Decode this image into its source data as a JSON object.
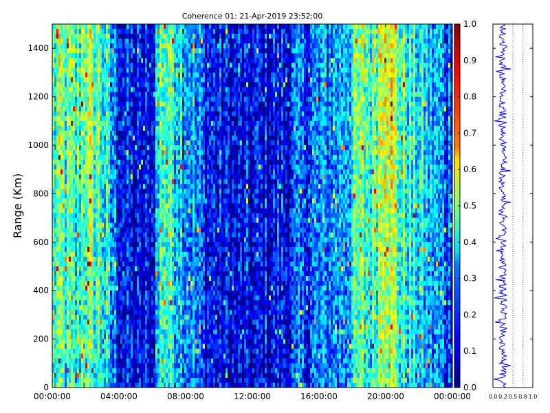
{
  "chart_data": [
    {
      "type": "heatmap",
      "title": "Coherence 01: 21-Apr-2019 23:52:00",
      "xlabel": "",
      "ylabel": "Range (Km)",
      "x_ticks": [
        "00:00:00",
        "04:00:00",
        "08:00:00",
        "12:00:00",
        "16:00:00",
        "20:00:00",
        "00:00:00"
      ],
      "y_ticks": [
        0,
        200,
        400,
        600,
        800,
        1000,
        1200,
        1400
      ],
      "x_range_hours": [
        0,
        24
      ],
      "ylim": [
        0,
        1500
      ],
      "grid": false,
      "colormap": "jet",
      "colorbar": {
        "ticks": [
          0.0,
          0.1,
          0.2,
          0.3,
          0.4,
          0.5,
          0.6,
          0.7,
          0.8,
          0.9,
          1.0
        ],
        "tick_labels": [
          "0.0",
          "0.1",
          "0.2",
          "0.3",
          "0.4",
          "0.5",
          "0.6",
          "0.7",
          "0.8",
          "0.9",
          "1.0"
        ],
        "range": [
          0,
          1
        ]
      },
      "time_profile_hours": [
        [
          0,
          0.42
        ],
        [
          0.5,
          0.5
        ],
        [
          1,
          0.45
        ],
        [
          1.5,
          0.42
        ],
        [
          2,
          0.55
        ],
        [
          2.5,
          0.5
        ],
        [
          3,
          0.45
        ],
        [
          3.5,
          0.3
        ],
        [
          4,
          0.2
        ],
        [
          4.5,
          0.12
        ],
        [
          5,
          0.1
        ],
        [
          5.5,
          0.1
        ],
        [
          6,
          0.1
        ],
        [
          6.3,
          0.35
        ],
        [
          6.6,
          0.5
        ],
        [
          7,
          0.48
        ],
        [
          7.5,
          0.42
        ],
        [
          8,
          0.35
        ],
        [
          8.5,
          0.28
        ],
        [
          9,
          0.2
        ],
        [
          9.5,
          0.15
        ],
        [
          10,
          0.12
        ],
        [
          11,
          0.1
        ],
        [
          12,
          0.1
        ],
        [
          13,
          0.12
        ],
        [
          14,
          0.15
        ],
        [
          15,
          0.2
        ],
        [
          16,
          0.25
        ],
        [
          17,
          0.3
        ],
        [
          18,
          0.4
        ],
        [
          18.5,
          0.5
        ],
        [
          19,
          0.45
        ],
        [
          19.5,
          0.55
        ],
        [
          20,
          0.75
        ],
        [
          20.5,
          0.55
        ],
        [
          21,
          0.45
        ],
        [
          22,
          0.4
        ],
        [
          23,
          0.3
        ],
        [
          24,
          0.2
        ]
      ]
    },
    {
      "type": "line",
      "title": "",
      "xlabel": "",
      "ylabel": "",
      "x_ticks": [
        "0.0",
        "0.2",
        "0.5",
        "0.8",
        "1.0"
      ],
      "x_tick_values": [
        0.0,
        0.25,
        0.5,
        0.75,
        1.0
      ],
      "xlim": [
        0,
        1
      ],
      "ylim": [
        0,
        1500
      ],
      "grid_x": [
        0.5,
        0.75
      ],
      "series": [
        {
          "color": "#0000ff",
          "mean": 0.25,
          "spread": 0.05
        }
      ]
    }
  ]
}
